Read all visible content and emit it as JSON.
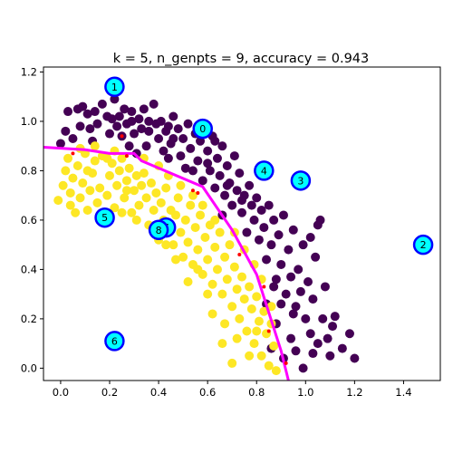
{
  "chart_data": {
    "type": "scatter",
    "title": "k = 5, n_genpts = 9, accuracy = 0.943",
    "xlabel": "",
    "ylabel": "",
    "xlim": [
      -0.07,
      1.55
    ],
    "ylim": [
      -0.05,
      1.22
    ],
    "xticks": [
      "0.0",
      "0.2",
      "0.4",
      "0.6",
      "0.8",
      "1.0",
      "1.2",
      "1.4"
    ],
    "yticks": [
      "0.0",
      "0.2",
      "0.4",
      "0.6",
      "0.8",
      "1.0",
      "1.2"
    ],
    "grid": false,
    "colors": {
      "class0": "#440154",
      "class1": "#fde725",
      "boundary": "#ff00ff",
      "misclassified": "#ff0000",
      "center_fill": "#00ffff",
      "center_edge": "#0000ff"
    },
    "series": [
      {
        "points": [
          [
            0.0,
            0.91
          ],
          [
            0.02,
            0.96
          ],
          [
            0.03,
            1.04
          ],
          [
            0.05,
            0.93
          ],
          [
            0.07,
            1.05
          ],
          [
            0.08,
            0.98
          ],
          [
            0.09,
            1.06
          ],
          [
            0.11,
            1.03
          ],
          [
            0.12,
            0.97
          ],
          [
            0.13,
            0.92
          ],
          [
            0.14,
            1.04
          ],
          [
            0.15,
            0.99
          ],
          [
            0.17,
            1.07
          ],
          [
            0.19,
            1.02
          ],
          [
            0.2,
            0.95
          ],
          [
            0.21,
            1.01
          ],
          [
            0.22,
            1.09
          ],
          [
            0.23,
            0.98
          ],
          [
            0.24,
            1.02
          ],
          [
            0.25,
            0.94
          ],
          [
            0.26,
            1.05
          ],
          [
            0.27,
            0.99
          ],
          [
            0.28,
            0.9
          ],
          [
            0.29,
            1.04
          ],
          [
            0.3,
            0.95
          ],
          [
            0.31,
            0.87
          ],
          [
            0.32,
            1.01
          ],
          [
            0.33,
            0.97
          ],
          [
            0.34,
            1.05
          ],
          [
            0.35,
            0.9
          ],
          [
            0.36,
            0.96
          ],
          [
            0.38,
            1.07
          ],
          [
            0.39,
            0.99
          ],
          [
            0.4,
            0.93
          ],
          [
            0.41,
            1.0
          ],
          [
            0.42,
            0.88
          ],
          [
            0.43,
            0.96
          ],
          [
            0.44,
            0.85
          ],
          [
            0.45,
            0.91
          ],
          [
            0.46,
            1.02
          ],
          [
            0.48,
            0.97
          ],
          [
            0.49,
            0.86
          ],
          [
            0.5,
            0.93
          ],
          [
            0.51,
            0.81
          ],
          [
            0.52,
            0.99
          ],
          [
            0.53,
            0.89
          ],
          [
            0.54,
            0.8
          ],
          [
            0.55,
            0.95
          ],
          [
            0.56,
            0.84
          ],
          [
            0.57,
            0.92
          ],
          [
            0.58,
            0.76
          ],
          [
            0.6,
            0.88
          ],
          [
            0.61,
            0.8
          ],
          [
            0.62,
            0.94
          ],
          [
            0.63,
            0.73
          ],
          [
            0.64,
            0.85
          ],
          [
            0.65,
            0.78
          ],
          [
            0.66,
            0.9
          ],
          [
            0.67,
            0.7
          ],
          [
            0.68,
            0.82
          ],
          [
            0.69,
            0.75
          ],
          [
            0.7,
            0.66
          ],
          [
            0.71,
            0.86
          ],
          [
            0.72,
            0.72
          ],
          [
            0.73,
            0.79
          ],
          [
            0.74,
            0.63
          ],
          [
            0.75,
            0.7
          ],
          [
            0.76,
            0.55
          ],
          [
            0.77,
            0.74
          ],
          [
            0.78,
            0.66
          ],
          [
            0.79,
            0.6
          ],
          [
            0.8,
            0.69
          ],
          [
            0.81,
            0.52
          ],
          [
            0.82,
            0.64
          ],
          [
            0.83,
            0.57
          ],
          [
            0.84,
            0.44
          ],
          [
            0.85,
            0.66
          ],
          [
            0.86,
            0.5
          ],
          [
            0.87,
            0.6
          ],
          [
            0.88,
            0.36
          ],
          [
            0.89,
            0.54
          ],
          [
            0.9,
            0.42
          ],
          [
            0.91,
            0.62
          ],
          [
            0.92,
            0.3
          ],
          [
            0.93,
            0.48
          ],
          [
            0.94,
            0.37
          ],
          [
            0.95,
            0.56
          ],
          [
            0.96,
            0.25
          ],
          [
            0.97,
            0.4
          ],
          [
            0.98,
            0.31
          ],
          [
            0.99,
            0.5
          ],
          [
            1.0,
            0.2
          ],
          [
            1.01,
            0.35
          ],
          [
            1.02,
            0.14
          ],
          [
            1.03,
            0.28
          ],
          [
            1.04,
            0.45
          ],
          [
            1.05,
            0.1
          ],
          [
            1.06,
            0.6
          ],
          [
            1.07,
            0.2
          ],
          [
            1.08,
            0.33
          ],
          [
            1.09,
            0.12
          ],
          [
            1.1,
            0.05
          ],
          [
            1.11,
            0.17
          ],
          [
            1.12,
            0.21
          ],
          [
            1.15,
            0.08
          ],
          [
            1.18,
            0.14
          ],
          [
            1.2,
            0.04
          ],
          [
            0.91,
            0.04
          ],
          [
            0.94,
            0.12
          ],
          [
            0.99,
            0.0
          ],
          [
            0.96,
            0.07
          ],
          [
            0.88,
            0.18
          ],
          [
            1.03,
            0.06
          ],
          [
            0.87,
            0.33
          ],
          [
            0.84,
            0.26
          ],
          [
            0.95,
            0.22
          ],
          [
            0.9,
            0.26
          ],
          [
            0.86,
            0.08
          ],
          [
            1.05,
            0.58
          ],
          [
            1.02,
            0.53
          ],
          [
            0.74,
            0.68
          ],
          [
            0.68,
            0.74
          ],
          [
            0.66,
            0.62
          ],
          [
            0.6,
            0.83
          ],
          [
            0.63,
            0.92
          ],
          [
            0.57,
            0.98
          ],
          [
            0.46,
            0.93
          ],
          [
            0.44,
            0.98
          ],
          [
            0.36,
            1.0
          ],
          [
            0.29,
            1.0
          ]
        ]
      },
      {
        "points": [
          [
            -0.01,
            0.68
          ],
          [
            0.01,
            0.74
          ],
          [
            0.02,
            0.8
          ],
          [
            0.03,
            0.85
          ],
          [
            0.04,
            0.71
          ],
          [
            0.05,
            0.77
          ],
          [
            0.06,
            0.63
          ],
          [
            0.07,
            0.82
          ],
          [
            0.08,
            0.69
          ],
          [
            0.09,
            0.75
          ],
          [
            0.1,
            0.87
          ],
          [
            0.11,
            0.64
          ],
          [
            0.12,
            0.72
          ],
          [
            0.13,
            0.79
          ],
          [
            0.14,
            0.84
          ],
          [
            0.15,
            0.67
          ],
          [
            0.16,
            0.73
          ],
          [
            0.17,
            0.86
          ],
          [
            0.18,
            0.61
          ],
          [
            0.19,
            0.7
          ],
          [
            0.2,
            0.78
          ],
          [
            0.21,
            0.83
          ],
          [
            0.22,
            0.65
          ],
          [
            0.23,
            0.74
          ],
          [
            0.24,
            0.8
          ],
          [
            0.25,
            0.85
          ],
          [
            0.26,
            0.69
          ],
          [
            0.27,
            0.76
          ],
          [
            0.28,
            0.81
          ],
          [
            0.29,
            0.63
          ],
          [
            0.3,
            0.72
          ],
          [
            0.31,
            0.78
          ],
          [
            0.32,
            0.66
          ],
          [
            0.33,
            0.74
          ],
          [
            0.34,
            0.79
          ],
          [
            0.35,
            0.69
          ],
          [
            0.36,
            0.58
          ],
          [
            0.37,
            0.75
          ],
          [
            0.38,
            0.64
          ],
          [
            0.39,
            0.71
          ],
          [
            0.4,
            0.52
          ],
          [
            0.41,
            0.67
          ],
          [
            0.42,
            0.6
          ],
          [
            0.43,
            0.73
          ],
          [
            0.44,
            0.56
          ],
          [
            0.45,
            0.64
          ],
          [
            0.46,
            0.5
          ],
          [
            0.47,
            0.62
          ],
          [
            0.48,
            0.69
          ],
          [
            0.49,
            0.55
          ],
          [
            0.5,
            0.45
          ],
          [
            0.51,
            0.6
          ],
          [
            0.52,
            0.51
          ],
          [
            0.53,
            0.66
          ],
          [
            0.54,
            0.42
          ],
          [
            0.55,
            0.57
          ],
          [
            0.56,
            0.48
          ],
          [
            0.57,
            0.62
          ],
          [
            0.58,
            0.38
          ],
          [
            0.59,
            0.53
          ],
          [
            0.6,
            0.44
          ],
          [
            0.61,
            0.58
          ],
          [
            0.62,
            0.34
          ],
          [
            0.63,
            0.49
          ],
          [
            0.64,
            0.4
          ],
          [
            0.65,
            0.55
          ],
          [
            0.66,
            0.3
          ],
          [
            0.67,
            0.45
          ],
          [
            0.68,
            0.36
          ],
          [
            0.69,
            0.5
          ],
          [
            0.7,
            0.25
          ],
          [
            0.71,
            0.41
          ],
          [
            0.72,
            0.32
          ],
          [
            0.73,
            0.2
          ],
          [
            0.74,
            0.37
          ],
          [
            0.75,
            0.28
          ],
          [
            0.76,
            0.15
          ],
          [
            0.77,
            0.33
          ],
          [
            0.78,
            0.24
          ],
          [
            0.79,
            0.1
          ],
          [
            0.8,
            0.29
          ],
          [
            0.81,
            0.19
          ],
          [
            0.82,
            0.05
          ],
          [
            0.83,
            0.23
          ],
          [
            0.84,
            0.14
          ],
          [
            0.85,
            0.01
          ],
          [
            0.86,
            0.18
          ],
          [
            0.87,
            0.09
          ],
          [
            0.88,
            -0.01
          ],
          [
            0.7,
            0.02
          ],
          [
            0.66,
            0.1
          ],
          [
            0.72,
            0.12
          ],
          [
            0.77,
            0.05
          ],
          [
            0.62,
            0.22
          ],
          [
            0.67,
            0.18
          ],
          [
            0.6,
            0.3
          ],
          [
            0.56,
            0.4
          ],
          [
            0.52,
            0.35
          ],
          [
            0.47,
            0.44
          ],
          [
            0.43,
            0.5
          ],
          [
            0.63,
            0.6
          ],
          [
            0.58,
            0.66
          ],
          [
            0.54,
            0.7
          ],
          [
            0.49,
            0.74
          ],
          [
            0.44,
            0.78
          ],
          [
            0.4,
            0.82
          ],
          [
            0.34,
            0.85
          ],
          [
            0.22,
            0.88
          ],
          [
            0.14,
            0.9
          ],
          [
            0.08,
            0.89
          ],
          [
            0.16,
            0.61
          ],
          [
            0.25,
            0.63
          ],
          [
            0.04,
            0.66
          ],
          [
            0.11,
            0.8
          ],
          [
            0.19,
            0.85
          ],
          [
            0.27,
            0.72
          ],
          [
            0.31,
            0.6
          ],
          [
            0.38,
            0.55
          ],
          [
            0.75,
            0.48
          ],
          [
            0.71,
            0.55
          ],
          [
            0.79,
            0.42
          ],
          [
            0.82,
            0.36
          ],
          [
            0.86,
            0.25
          ],
          [
            0.8,
            0.15
          ]
        ]
      }
    ],
    "misclassified": [
      [
        0.25,
        0.94
      ],
      [
        0.54,
        0.72
      ],
      [
        0.56,
        0.71
      ],
      [
        0.73,
        0.46
      ],
      [
        0.85,
        0.15
      ],
      [
        0.92,
        0.02
      ],
      [
        0.83,
        0.33
      ],
      [
        0.27,
        0.86
      ],
      [
        0.05,
        0.87
      ]
    ],
    "boundary": [
      [
        -0.07,
        0.895
      ],
      [
        0.1,
        0.885
      ],
      [
        0.2,
        0.87
      ],
      [
        0.3,
        0.87
      ],
      [
        0.33,
        0.84
      ],
      [
        0.58,
        0.735
      ],
      [
        0.7,
        0.56
      ],
      [
        0.8,
        0.38
      ],
      [
        0.9,
        0.07
      ],
      [
        0.93,
        -0.05
      ]
    ],
    "centers": [
      {
        "label": "0",
        "x": 0.58,
        "y": 0.97
      },
      {
        "label": "1",
        "x": 0.22,
        "y": 1.14
      },
      {
        "label": "2",
        "x": 1.48,
        "y": 0.5
      },
      {
        "label": "3",
        "x": 0.98,
        "y": 0.76
      },
      {
        "label": "4",
        "x": 0.83,
        "y": 0.8
      },
      {
        "label": "5",
        "x": 0.18,
        "y": 0.61
      },
      {
        "label": "6",
        "x": 0.22,
        "y": 0.11
      },
      {
        "label": "7",
        "x": 0.43,
        "y": 0.57
      },
      {
        "label": "8",
        "x": 0.4,
        "y": 0.56
      }
    ]
  }
}
